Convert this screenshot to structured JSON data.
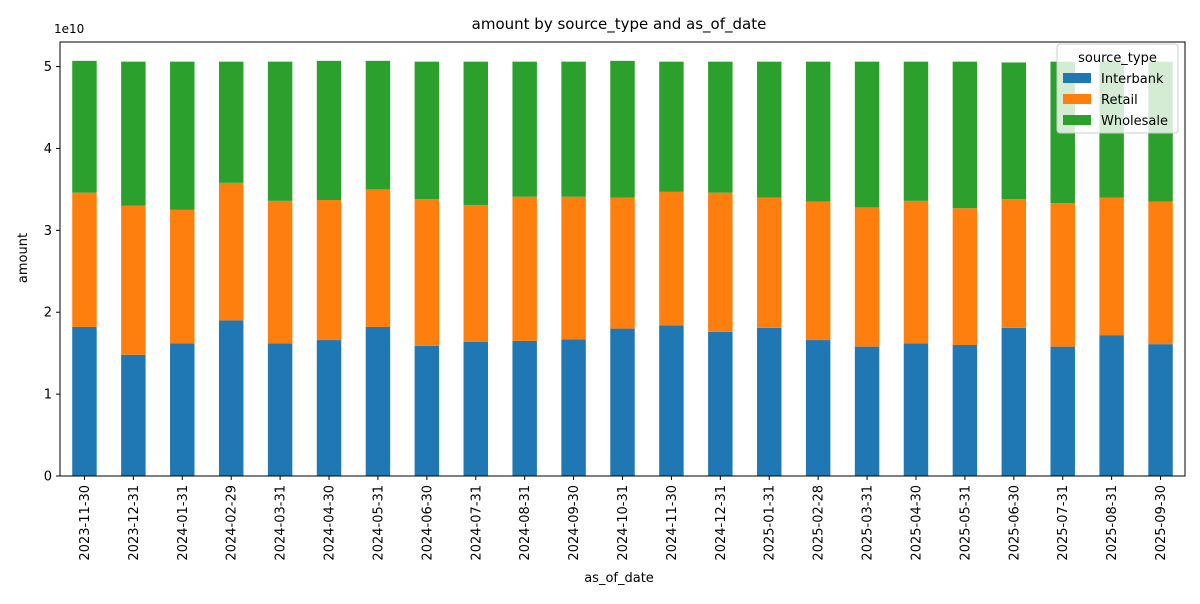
{
  "chart_data": {
    "type": "bar",
    "stacked": true,
    "title": "amount by source_type and as_of_date",
    "xlabel": "as_of_date",
    "ylabel": "amount",
    "y_offset_label": "1e10",
    "ylim": [
      0,
      5.3
    ],
    "y_unit_multiplier": 10000000000.0,
    "yticks": [
      0,
      1,
      2,
      3,
      4,
      5
    ],
    "grid": false,
    "legend": {
      "title": "source_type",
      "placement": "top-right"
    },
    "categories": [
      "2023-11-30",
      "2023-12-31",
      "2024-01-31",
      "2024-02-29",
      "2024-03-31",
      "2024-04-30",
      "2024-05-31",
      "2024-06-30",
      "2024-07-31",
      "2024-08-31",
      "2024-09-30",
      "2024-10-31",
      "2024-11-30",
      "2024-12-31",
      "2025-01-31",
      "2025-02-28",
      "2025-03-31",
      "2025-04-30",
      "2025-05-31",
      "2025-06-30",
      "2025-07-31",
      "2025-08-31",
      "2025-09-30"
    ],
    "series": [
      {
        "name": "Interbank",
        "color": "#1f77b4",
        "values": [
          1.82,
          1.48,
          1.62,
          1.9,
          1.62,
          1.66,
          1.82,
          1.59,
          1.64,
          1.65,
          1.67,
          1.8,
          1.84,
          1.76,
          1.81,
          1.66,
          1.58,
          1.62,
          1.6,
          1.81,
          1.58,
          1.72,
          1.61
        ]
      },
      {
        "name": "Retail",
        "color": "#ff7f0e",
        "values": [
          1.64,
          1.82,
          1.63,
          1.68,
          1.74,
          1.71,
          1.68,
          1.79,
          1.67,
          1.76,
          1.74,
          1.6,
          1.63,
          1.7,
          1.59,
          1.69,
          1.7,
          1.74,
          1.67,
          1.57,
          1.75,
          1.68,
          1.74
        ]
      },
      {
        "name": "Wholesale",
        "color": "#2ca02c",
        "values": [
          1.61,
          1.76,
          1.81,
          1.48,
          1.7,
          1.7,
          1.57,
          1.68,
          1.75,
          1.65,
          1.65,
          1.67,
          1.59,
          1.6,
          1.66,
          1.71,
          1.78,
          1.7,
          1.79,
          1.67,
          1.73,
          1.66,
          1.71
        ]
      }
    ]
  }
}
